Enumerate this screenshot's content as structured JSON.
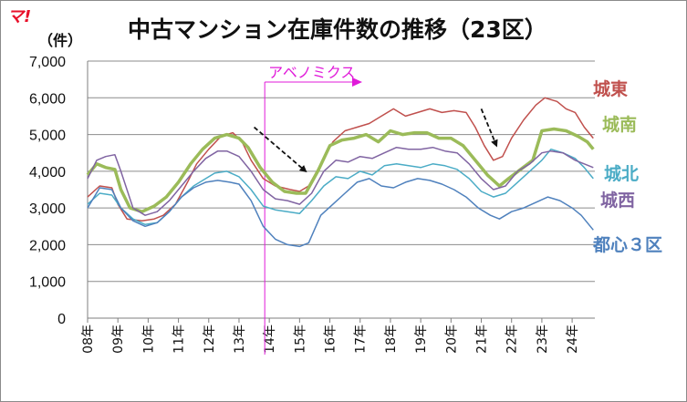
{
  "logo_text": "マ!",
  "chart_data": {
    "type": "line",
    "title": "中古マンション在庫件数の推移（23区）",
    "ylabel": "（件）",
    "xlabel": "",
    "ylim": [
      0,
      7000
    ],
    "yticks": [
      "0",
      "1,000",
      "2,000",
      "3,000",
      "4,000",
      "5,000",
      "6,000",
      "7,000"
    ],
    "xlim": [
      2008.0,
      2024.75
    ],
    "categories": [
      "08年",
      "09年",
      "10年",
      "11年",
      "12年",
      "13年",
      "14年",
      "15年",
      "16年",
      "17年",
      "18年",
      "19年",
      "20年",
      "21年",
      "22年",
      "23年",
      "24年"
    ],
    "grid": true,
    "legend": "labels at right end of each line",
    "annotation": {
      "label": "アベノミクス",
      "x": 2013.0
    },
    "trend_arrows": [
      {
        "x0": 2013.5,
        "y0": 5200,
        "x1": 2015.2,
        "y1": 4000
      },
      {
        "x0": 2021.0,
        "y0": 5700,
        "x1": 2021.5,
        "y1": 4700
      }
    ],
    "series": [
      {
        "name": "城東",
        "color": "#c0504d",
        "width": 1.5,
        "points": [
          [
            2008.0,
            3300
          ],
          [
            2008.4,
            3600
          ],
          [
            2008.8,
            3550
          ],
          [
            2009.0,
            3100
          ],
          [
            2009.3,
            2700
          ],
          [
            2009.8,
            2650
          ],
          [
            2010.2,
            2700
          ],
          [
            2010.5,
            2800
          ],
          [
            2010.9,
            3100
          ],
          [
            2011.3,
            3700
          ],
          [
            2011.6,
            4200
          ],
          [
            2012.0,
            4600
          ],
          [
            2012.4,
            4950
          ],
          [
            2012.8,
            5050
          ],
          [
            2013.1,
            4800
          ],
          [
            2013.4,
            4300
          ],
          [
            2013.8,
            3800
          ],
          [
            2014.2,
            3600
          ],
          [
            2014.7,
            3500
          ],
          [
            2015.0,
            3450
          ],
          [
            2015.3,
            3600
          ],
          [
            2015.7,
            4200
          ],
          [
            2016.1,
            4800
          ],
          [
            2016.5,
            5100
          ],
          [
            2016.9,
            5200
          ],
          [
            2017.3,
            5300
          ],
          [
            2017.7,
            5500
          ],
          [
            2018.1,
            5700
          ],
          [
            2018.5,
            5500
          ],
          [
            2018.9,
            5600
          ],
          [
            2019.3,
            5700
          ],
          [
            2019.7,
            5600
          ],
          [
            2020.1,
            5650
          ],
          [
            2020.5,
            5600
          ],
          [
            2020.8,
            5200
          ],
          [
            2021.1,
            4700
          ],
          [
            2021.4,
            4300
          ],
          [
            2021.7,
            4400
          ],
          [
            2022.0,
            4900
          ],
          [
            2022.4,
            5400
          ],
          [
            2022.8,
            5800
          ],
          [
            2023.1,
            6000
          ],
          [
            2023.5,
            5900
          ],
          [
            2023.8,
            5700
          ],
          [
            2024.1,
            5600
          ],
          [
            2024.4,
            5200
          ],
          [
            2024.7,
            4900
          ]
        ]
      },
      {
        "name": "城南",
        "color": "#9bbb59",
        "width": 3.5,
        "points": [
          [
            2008.0,
            3900
          ],
          [
            2008.3,
            4200
          ],
          [
            2008.6,
            4100
          ],
          [
            2008.9,
            4050
          ],
          [
            2009.1,
            3500
          ],
          [
            2009.4,
            3000
          ],
          [
            2009.8,
            2900
          ],
          [
            2010.2,
            3050
          ],
          [
            2010.6,
            3300
          ],
          [
            2011.0,
            3700
          ],
          [
            2011.4,
            4200
          ],
          [
            2011.8,
            4600
          ],
          [
            2012.2,
            4900
          ],
          [
            2012.6,
            5000
          ],
          [
            2013.0,
            4900
          ],
          [
            2013.3,
            4650
          ],
          [
            2013.7,
            4100
          ],
          [
            2014.1,
            3700
          ],
          [
            2014.5,
            3450
          ],
          [
            2014.9,
            3400
          ],
          [
            2015.2,
            3400
          ],
          [
            2015.6,
            4000
          ],
          [
            2016.0,
            4700
          ],
          [
            2016.4,
            4850
          ],
          [
            2016.8,
            4900
          ],
          [
            2017.2,
            5000
          ],
          [
            2017.6,
            4800
          ],
          [
            2018.0,
            5100
          ],
          [
            2018.4,
            5000
          ],
          [
            2018.8,
            5050
          ],
          [
            2019.2,
            5050
          ],
          [
            2019.6,
            4900
          ],
          [
            2020.0,
            4900
          ],
          [
            2020.4,
            4700
          ],
          [
            2020.8,
            4300
          ],
          [
            2021.2,
            3900
          ],
          [
            2021.6,
            3600
          ],
          [
            2021.9,
            3800
          ],
          [
            2022.3,
            4050
          ],
          [
            2022.7,
            4300
          ],
          [
            2023.0,
            5100
          ],
          [
            2023.4,
            5150
          ],
          [
            2023.8,
            5100
          ],
          [
            2024.2,
            4950
          ],
          [
            2024.5,
            4800
          ],
          [
            2024.7,
            4600
          ]
        ]
      },
      {
        "name": "城北",
        "color": "#4bacc6",
        "width": 1.5,
        "points": [
          [
            2008.0,
            3100
          ],
          [
            2008.4,
            3400
          ],
          [
            2008.8,
            3350
          ],
          [
            2009.1,
            3000
          ],
          [
            2009.5,
            2700
          ],
          [
            2009.9,
            2550
          ],
          [
            2010.3,
            2600
          ],
          [
            2010.7,
            2900
          ],
          [
            2011.1,
            3300
          ],
          [
            2011.5,
            3600
          ],
          [
            2011.9,
            3800
          ],
          [
            2012.2,
            3950
          ],
          [
            2012.6,
            4000
          ],
          [
            2013.0,
            3850
          ],
          [
            2013.4,
            3500
          ],
          [
            2013.8,
            3050
          ],
          [
            2014.2,
            2950
          ],
          [
            2014.6,
            2900
          ],
          [
            2015.0,
            2850
          ],
          [
            2015.4,
            3200
          ],
          [
            2015.8,
            3600
          ],
          [
            2016.2,
            3850
          ],
          [
            2016.6,
            3800
          ],
          [
            2017.0,
            4000
          ],
          [
            2017.4,
            3900
          ],
          [
            2017.8,
            4150
          ],
          [
            2018.2,
            4200
          ],
          [
            2018.6,
            4150
          ],
          [
            2019.0,
            4100
          ],
          [
            2019.4,
            4200
          ],
          [
            2019.8,
            4150
          ],
          [
            2020.2,
            4050
          ],
          [
            2020.6,
            3800
          ],
          [
            2021.0,
            3450
          ],
          [
            2021.4,
            3300
          ],
          [
            2021.8,
            3400
          ],
          [
            2022.2,
            3700
          ],
          [
            2022.6,
            4000
          ],
          [
            2023.0,
            4300
          ],
          [
            2023.3,
            4600
          ],
          [
            2023.7,
            4500
          ],
          [
            2024.1,
            4350
          ],
          [
            2024.4,
            4100
          ],
          [
            2024.7,
            3800
          ]
        ]
      },
      {
        "name": "城西",
        "color": "#8064a2",
        "width": 1.5,
        "points": [
          [
            2008.0,
            3800
          ],
          [
            2008.3,
            4300
          ],
          [
            2008.6,
            4400
          ],
          [
            2008.9,
            4450
          ],
          [
            2009.1,
            4000
          ],
          [
            2009.5,
            3000
          ],
          [
            2009.9,
            2800
          ],
          [
            2010.3,
            2900
          ],
          [
            2010.7,
            3200
          ],
          [
            2011.1,
            3600
          ],
          [
            2011.5,
            4000
          ],
          [
            2011.9,
            4350
          ],
          [
            2012.3,
            4550
          ],
          [
            2012.6,
            4550
          ],
          [
            2013.0,
            4400
          ],
          [
            2013.4,
            4000
          ],
          [
            2013.8,
            3500
          ],
          [
            2014.2,
            3250
          ],
          [
            2014.6,
            3200
          ],
          [
            2015.0,
            3100
          ],
          [
            2015.4,
            3400
          ],
          [
            2015.8,
            4000
          ],
          [
            2016.2,
            4300
          ],
          [
            2016.6,
            4250
          ],
          [
            2017.0,
            4400
          ],
          [
            2017.4,
            4350
          ],
          [
            2017.8,
            4500
          ],
          [
            2018.2,
            4650
          ],
          [
            2018.6,
            4600
          ],
          [
            2019.0,
            4600
          ],
          [
            2019.4,
            4650
          ],
          [
            2019.8,
            4550
          ],
          [
            2020.2,
            4500
          ],
          [
            2020.6,
            4200
          ],
          [
            2021.0,
            3800
          ],
          [
            2021.4,
            3500
          ],
          [
            2021.8,
            3600
          ],
          [
            2022.2,
            4000
          ],
          [
            2022.6,
            4200
          ],
          [
            2023.0,
            4500
          ],
          [
            2023.3,
            4550
          ],
          [
            2023.7,
            4500
          ],
          [
            2024.1,
            4300
          ],
          [
            2024.4,
            4200
          ],
          [
            2024.7,
            4100
          ]
        ]
      },
      {
        "name": "都心３区",
        "color": "#4f81bd",
        "width": 1.5,
        "points": [
          [
            2008.0,
            3000
          ],
          [
            2008.4,
            3550
          ],
          [
            2008.8,
            3500
          ],
          [
            2009.1,
            3000
          ],
          [
            2009.5,
            2650
          ],
          [
            2009.9,
            2500
          ],
          [
            2010.3,
            2600
          ],
          [
            2010.7,
            2900
          ],
          [
            2011.1,
            3300
          ],
          [
            2011.5,
            3550
          ],
          [
            2011.9,
            3700
          ],
          [
            2012.3,
            3750
          ],
          [
            2012.7,
            3700
          ],
          [
            2013.0,
            3650
          ],
          [
            2013.4,
            3200
          ],
          [
            2013.8,
            2500
          ],
          [
            2014.2,
            2150
          ],
          [
            2014.6,
            2000
          ],
          [
            2015.0,
            1950
          ],
          [
            2015.3,
            2050
          ],
          [
            2015.7,
            2800
          ],
          [
            2016.1,
            3100
          ],
          [
            2016.5,
            3400
          ],
          [
            2016.9,
            3700
          ],
          [
            2017.3,
            3800
          ],
          [
            2017.7,
            3600
          ],
          [
            2018.1,
            3550
          ],
          [
            2018.5,
            3700
          ],
          [
            2018.9,
            3800
          ],
          [
            2019.3,
            3750
          ],
          [
            2019.7,
            3650
          ],
          [
            2020.1,
            3500
          ],
          [
            2020.5,
            3300
          ],
          [
            2020.9,
            3000
          ],
          [
            2021.3,
            2800
          ],
          [
            2021.6,
            2700
          ],
          [
            2022.0,
            2900
          ],
          [
            2022.4,
            3000
          ],
          [
            2022.8,
            3150
          ],
          [
            2023.2,
            3300
          ],
          [
            2023.6,
            3200
          ],
          [
            2024.0,
            3000
          ],
          [
            2024.3,
            2800
          ],
          [
            2024.7,
            2400
          ]
        ]
      }
    ]
  }
}
